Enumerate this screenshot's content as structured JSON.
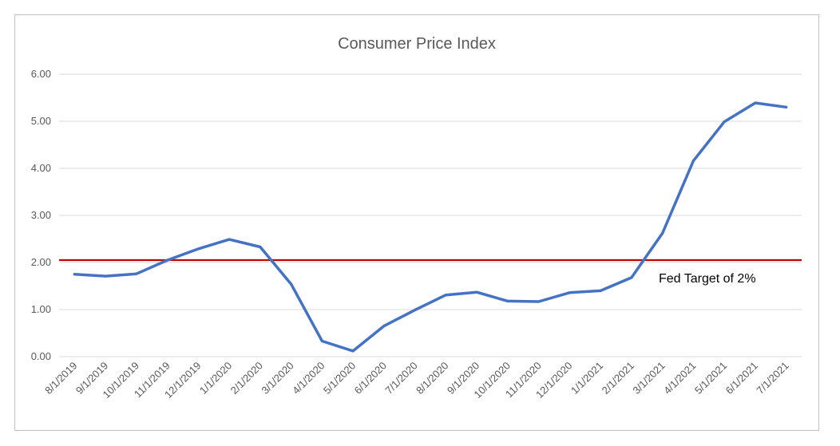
{
  "chart_data": {
    "type": "line",
    "title": "Consumer Price Index",
    "xlabel": "",
    "ylabel": "",
    "ylim": [
      0,
      6
    ],
    "yticks": [
      "0.00",
      "1.00",
      "2.00",
      "3.00",
      "4.00",
      "5.00",
      "6.00"
    ],
    "grid": true,
    "categories": [
      "8/1/2019",
      "9/1/2019",
      "10/1/2019",
      "11/1/2019",
      "12/1/2019",
      "1/1/2020",
      "2/1/2020",
      "3/1/2020",
      "4/1/2020",
      "5/1/2020",
      "6/1/2020",
      "7/1/2020",
      "8/1/2020",
      "9/1/2020",
      "10/1/2020",
      "11/1/2020",
      "12/1/2020",
      "1/1/2021",
      "2/1/2021",
      "3/1/2021",
      "4/1/2021",
      "5/1/2021",
      "6/1/2021",
      "7/1/2021"
    ],
    "series": [
      {
        "color": "#4472c4",
        "values": [
          1.75,
          1.71,
          1.76,
          2.05,
          2.29,
          2.49,
          2.33,
          1.54,
          0.33,
          0.12,
          0.65,
          0.99,
          1.31,
          1.37,
          1.18,
          1.17,
          1.36,
          1.4,
          1.68,
          2.62,
          4.16,
          4.99,
          5.39,
          5.3
        ]
      }
    ],
    "reference_line": {
      "value": 2.05,
      "color": "#c00000",
      "label": "Fed Target of 2%"
    }
  }
}
